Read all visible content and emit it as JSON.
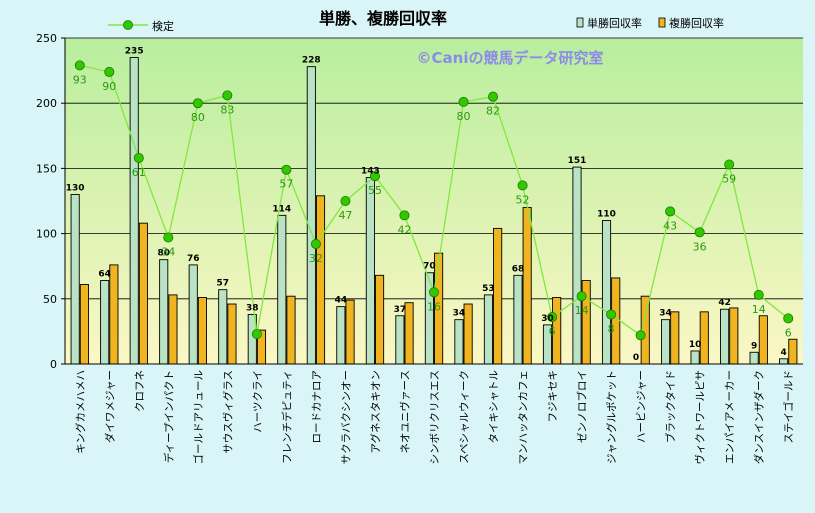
{
  "colors": {
    "frame_bg": "#d9f5f8",
    "plot_top": "#b8ee9e",
    "plot_bottom": "#fbf7c4",
    "win_fill": "#b9e3c4",
    "place_fill": "#f0b420",
    "line": "#80e840",
    "marker": "#31c800",
    "line_label": "#2a9a10",
    "watermark": "#8b8be8"
  },
  "chart_data": {
    "type": "bar",
    "title": "単勝、複勝回収率",
    "watermark": "©Caniの競馬データ研究室",
    "ylim": [
      0,
      250
    ],
    "yticks": [
      0,
      50,
      100,
      150,
      200,
      250
    ],
    "grid": true,
    "legend": {
      "line_series": "検定",
      "bar_series": [
        "単勝回収率",
        "複勝回収率"
      ]
    },
    "categories": [
      "キングカメハメハ",
      "ダイワメジャー",
      "クロフネ",
      "ディープインパクト",
      "ゴールドアリュール",
      "サウスヴィグラス",
      "ハーツクライ",
      "フレンチデピュティ",
      "ロードカナロア",
      "サクラバクシンオー",
      "アグネスタキオン",
      "ネオユニヴァース",
      "シンボリクリスエス",
      "スペシャルウィーク",
      "タイキシャトル",
      "マンハッタンカフェ",
      "フジキセキ",
      "ゼンノロブロイ",
      "ジャングルポケット",
      "ハービンジャー",
      "ブラックタイド",
      "ヴィクトワールピサ",
      "エンパイアメーカー",
      "ダンスインザダーク",
      "ステイゴールド"
    ],
    "series": [
      {
        "name": "単勝回収率",
        "values": [
          130,
          64,
          235,
          80,
          76,
          57,
          38,
          114,
          228,
          44,
          143,
          37,
          70,
          34,
          53,
          68,
          30,
          151,
          110,
          0,
          34,
          10,
          42,
          9,
          4
        ],
        "labels": [
          "130",
          "64",
          "235",
          "80",
          "76",
          "57",
          "38",
          "114",
          "228",
          "44",
          "143",
          "37",
          "70",
          "34",
          "53",
          "68",
          "30",
          "151",
          "110",
          "0",
          "34",
          "10",
          "42",
          "9",
          "4"
        ]
      },
      {
        "name": "複勝回収率",
        "values": [
          61,
          76,
          108,
          53,
          51,
          46,
          26,
          52,
          129,
          49,
          68,
          47,
          85,
          46,
          104,
          120,
          51,
          64,
          66,
          52,
          40,
          40,
          43,
          37,
          19
        ]
      },
      {
        "name": "検定",
        "type": "line",
        "values": [
          229,
          224,
          158,
          97,
          200,
          206,
          23,
          149,
          92,
          125,
          144,
          114,
          55,
          201,
          205,
          137,
          36,
          52,
          38,
          22,
          117,
          101,
          153,
          53,
          35
        ],
        "labels": [
          "93",
          "90",
          "61",
          "34",
          "80",
          "83",
          "",
          "57",
          "32",
          "47",
          "55",
          "42",
          "16",
          "80",
          "82",
          "52",
          "6",
          "14",
          "8",
          "",
          "43",
          "36",
          "59",
          "14",
          "6"
        ]
      }
    ]
  }
}
